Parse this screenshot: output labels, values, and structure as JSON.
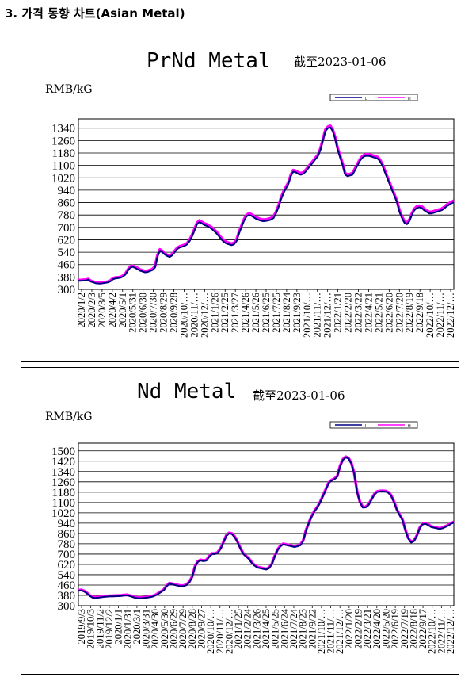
{
  "heading": "3. 가격 동향 차트(Asian Metal)",
  "colors": {
    "low": "#000080",
    "high": "#ff00ff"
  },
  "chart_data": [
    {
      "type": "line",
      "title": "PrNd Metal",
      "date_label": "截至2023-01-06",
      "ylabel": "RMB/kG",
      "ylim": [
        300,
        1400
      ],
      "grid": true,
      "legend_position": "top-right",
      "yticks": [
        300,
        380,
        460,
        540,
        620,
        700,
        780,
        860,
        940,
        1020,
        1100,
        1180,
        1260,
        1340
      ],
      "xticks": [
        "2020/1/2",
        "2020/2/3",
        "2020/3/5",
        "2020/4/2",
        "2020/5/1",
        "2020/5/31",
        "2020/6/30",
        "2020/7/30",
        "2020/8/29",
        "2020/9/28",
        "2020/10/…",
        "2020/11/…",
        "2020/12/…",
        "2021/1/26",
        "2021/2/25",
        "2021/3/27",
        "2021/4/26",
        "2021/5/26",
        "2021/6/25",
        "2021/7/25",
        "2021/8/24",
        "2021/9/23",
        "2021/10/…",
        "2021/11/…",
        "2021/12/…",
        "2022/1/21",
        "2022/2/20",
        "2022/3/22",
        "2022/4/21",
        "2022/5/21",
        "2022/6/20",
        "2022/7/20",
        "2022/8/19",
        "2022/9/18",
        "2022/10/…",
        "2022/11/…",
        "2022/12/…"
      ],
      "series": [
        {
          "name": "L",
          "values": [
            355,
            355,
            357,
            358,
            362,
            350,
            345,
            340,
            338,
            337,
            340,
            342,
            345,
            352,
            365,
            370,
            372,
            375,
            382,
            395,
            420,
            440,
            445,
            438,
            430,
            420,
            415,
            410,
            412,
            418,
            425,
            440,
            510,
            550,
            540,
            525,
            515,
            510,
            520,
            540,
            560,
            570,
            575,
            580,
            590,
            610,
            640,
            680,
            720,
            735,
            725,
            715,
            710,
            700,
            690,
            675,
            660,
            640,
            620,
            605,
            595,
            590,
            585,
            590,
            610,
            660,
            700,
            740,
            770,
            780,
            775,
            765,
            755,
            748,
            742,
            740,
            742,
            745,
            750,
            760,
            790,
            830,
            880,
            920,
            950,
            980,
            1030,
            1060,
            1055,
            1045,
            1040,
            1045,
            1060,
            1080,
            1100,
            1120,
            1140,
            1160,
            1200,
            1260,
            1320,
            1340,
            1345,
            1320,
            1270,
            1200,
            1150,
            1100,
            1040,
            1030,
            1035,
            1040,
            1070,
            1100,
            1130,
            1150,
            1160,
            1162,
            1160,
            1155,
            1150,
            1145,
            1130,
            1100,
            1060,
            1020,
            980,
            940,
            900,
            860,
            800,
            760,
            730,
            720,
            740,
            780,
            810,
            825,
            830,
            825,
            810,
            800,
            790,
            790,
            795,
            800,
            805,
            810,
            820,
            835,
            845,
            855,
            862
          ]
        },
        {
          "name": "H",
          "values": [
            360,
            360,
            362,
            363,
            367,
            355,
            350,
            345,
            343,
            342,
            345,
            347,
            350,
            358,
            372,
            376,
            378,
            380,
            388,
            402,
            428,
            448,
            452,
            445,
            437,
            428,
            422,
            418,
            420,
            425,
            432,
            448,
            520,
            558,
            548,
            532,
            522,
            518,
            528,
            548,
            568,
            578,
            582,
            588,
            598,
            620,
            650,
            690,
            730,
            745,
            735,
            725,
            720,
            710,
            700,
            685,
            670,
            650,
            630,
            615,
            605,
            600,
            595,
            600,
            620,
            670,
            710,
            750,
            780,
            790,
            785,
            775,
            765,
            758,
            752,
            750,
            752,
            755,
            760,
            770,
            800,
            840,
            890,
            930,
            960,
            990,
            1040,
            1070,
            1065,
            1055,
            1050,
            1055,
            1070,
            1090,
            1110,
            1130,
            1150,
            1170,
            1210,
            1270,
            1330,
            1350,
            1355,
            1330,
            1280,
            1210,
            1160,
            1110,
            1050,
            1040,
            1045,
            1050,
            1080,
            1110,
            1140,
            1160,
            1170,
            1172,
            1170,
            1165,
            1160,
            1155,
            1140,
            1110,
            1070,
            1030,
            990,
            950,
            910,
            870,
            810,
            770,
            740,
            730,
            750,
            790,
            820,
            835,
            840,
            835,
            820,
            810,
            800,
            800,
            805,
            810,
            815,
            820,
            830,
            845,
            855,
            865,
            872
          ]
        }
      ]
    },
    {
      "type": "line",
      "title": "Nd Metal",
      "date_label": "截至2023-01-06",
      "ylabel": "RMB/kG",
      "ylim": [
        300,
        1560
      ],
      "grid": true,
      "legend_position": "top-right",
      "yticks": [
        300,
        380,
        460,
        540,
        620,
        700,
        780,
        860,
        940,
        1020,
        1100,
        1180,
        1260,
        1340,
        1420,
        1500
      ],
      "xticks": [
        "2019/9/3",
        "2019/10/3",
        "2019/11/2",
        "2019/12/2",
        "2020/1/1",
        "2020/1/31",
        "2020/3/1",
        "2020/3/31",
        "2020/4/30",
        "2020/5/30",
        "2020/6/29",
        "2020/7/29",
        "2020/8/28",
        "2020/9/27",
        "2020/10/…",
        "2020/11/…",
        "2020/12/…",
        "2021/1/25",
        "2021/2/24",
        "2021/3/26",
        "2021/4/25",
        "2021/5/25",
        "2021/6/24",
        "2021/7/24",
        "2021/8/23",
        "2021/9/22",
        "2021/10/…",
        "2021/11/…",
        "2021/12/…",
        "2022/1/20",
        "2022/2/19",
        "2022/3/21",
        "2022/4/20",
        "2022/5/20",
        "2022/6/19",
        "2022/7/19",
        "2022/8/18",
        "2022/9/17",
        "2022/10/…",
        "2022/11/…",
        "2022/12/…"
      ],
      "series": [
        {
          "name": "L",
          "values": [
            415,
            418,
            410,
            395,
            375,
            362,
            360,
            362,
            365,
            368,
            370,
            372,
            372,
            373,
            374,
            375,
            378,
            380,
            375,
            368,
            360,
            358,
            358,
            360,
            362,
            365,
            370,
            378,
            390,
            405,
            420,
            450,
            470,
            465,
            460,
            455,
            450,
            452,
            460,
            480,
            520,
            600,
            640,
            650,
            645,
            650,
            680,
            700,
            700,
            710,
            740,
            790,
            840,
            860,
            855,
            830,
            790,
            740,
            700,
            680,
            660,
            630,
            610,
            595,
            590,
            585,
            580,
            590,
            620,
            680,
            730,
            760,
            775,
            770,
            765,
            760,
            755,
            760,
            768,
            800,
            880,
            940,
            990,
            1030,
            1060,
            1100,
            1150,
            1200,
            1250,
            1270,
            1280,
            1300,
            1380,
            1430,
            1450,
            1440,
            1400,
            1320,
            1180,
            1100,
            1060,
            1062,
            1080,
            1120,
            1160,
            1180,
            1185,
            1186,
            1184,
            1175,
            1150,
            1100,
            1040,
            1000,
            960,
            880,
            820,
            790,
            800,
            840,
            900,
            930,
            935,
            925,
            910,
            905,
            900,
            895,
            900,
            910,
            920,
            935,
            945
          ]
        },
        {
          "name": "H",
          "values": [
            420,
            423,
            415,
            400,
            380,
            367,
            365,
            367,
            370,
            373,
            375,
            377,
            377,
            378,
            379,
            380,
            383,
            385,
            380,
            373,
            365,
            363,
            363,
            365,
            367,
            370,
            375,
            383,
            395,
            410,
            425,
            455,
            475,
            470,
            465,
            460,
            455,
            457,
            465,
            485,
            525,
            605,
            645,
            655,
            650,
            655,
            685,
            705,
            705,
            715,
            745,
            795,
            845,
            865,
            860,
            835,
            795,
            745,
            705,
            685,
            665,
            635,
            615,
            600,
            595,
            590,
            585,
            595,
            625,
            685,
            735,
            765,
            780,
            775,
            770,
            765,
            760,
            765,
            773,
            805,
            885,
            945,
            995,
            1035,
            1065,
            1105,
            1155,
            1205,
            1255,
            1275,
            1285,
            1305,
            1385,
            1435,
            1455,
            1445,
            1405,
            1325,
            1185,
            1105,
            1065,
            1067,
            1085,
            1125,
            1165,
            1185,
            1190,
            1191,
            1189,
            1180,
            1155,
            1105,
            1045,
            1005,
            965,
            885,
            825,
            795,
            805,
            845,
            905,
            935,
            940,
            930,
            915,
            910,
            905,
            900,
            905,
            915,
            925,
            940,
            950
          ]
        }
      ]
    }
  ]
}
